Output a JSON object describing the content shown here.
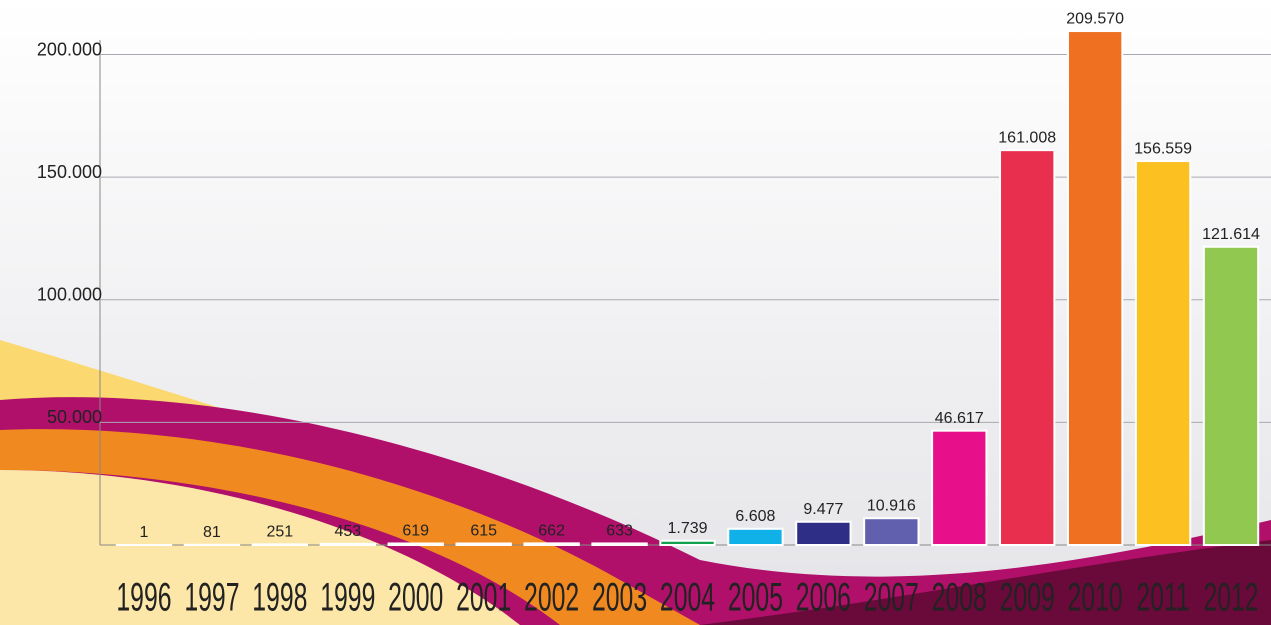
{
  "chart_data": {
    "type": "bar",
    "categories": [
      "1996",
      "1997",
      "1998",
      "1999",
      "2000",
      "2001",
      "2002",
      "2003",
      "2004",
      "2005",
      "2006",
      "2007",
      "2008",
      "2009",
      "2010",
      "2011",
      "2012"
    ],
    "values": [
      1,
      81,
      251,
      453,
      619,
      615,
      662,
      633,
      1739,
      6608,
      9477,
      10916,
      46617,
      161008,
      209570,
      156559,
      121614
    ],
    "value_labels": [
      "1",
      "81",
      "251",
      "453",
      "619",
      "615",
      "662",
      "633",
      "1.739",
      "6.608",
      "9.477",
      "10.916",
      "46.617",
      "161.008",
      "209.570",
      "156.559",
      "121.614"
    ],
    "colors": [
      "#d8d8e8",
      "#2e2e86",
      "#5a58a8",
      "#e0208a",
      "#e6304e",
      "#e8782e",
      "#f6e800",
      "#a8d070",
      "#10a050",
      "#10b0e8",
      "#2e2e86",
      "#6060ae",
      "#e8108a",
      "#e8304e",
      "#ee7020",
      "#fcc020",
      "#90c850"
    ],
    "ylim": [
      0,
      210000
    ],
    "yticks": [
      {
        "value": 50000,
        "label": "50.000"
      },
      {
        "value": 100000,
        "label": "100.000"
      },
      {
        "value": 150000,
        "label": "150.000"
      },
      {
        "value": 200000,
        "label": "200.000"
      }
    ],
    "grid": true
  }
}
